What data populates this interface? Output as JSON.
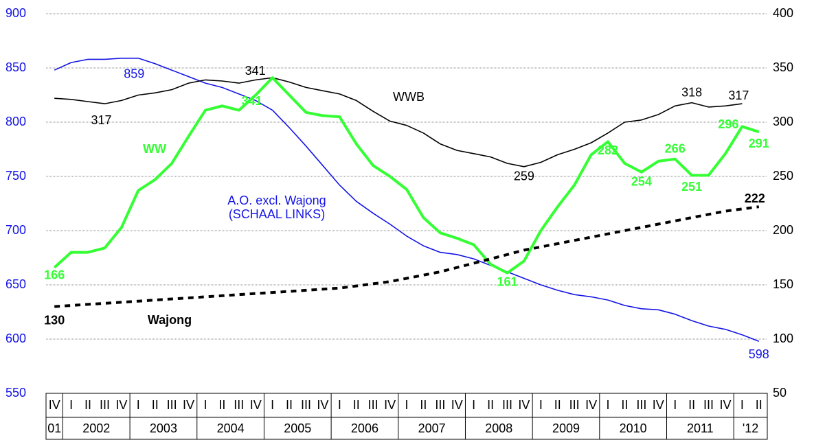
{
  "chart_data": {
    "type": "line",
    "category_groups": [
      {
        "label": "01",
        "categories": [
          "IV"
        ]
      },
      {
        "label": "2002",
        "categories": [
          "I",
          "II",
          "III",
          "IV"
        ]
      },
      {
        "label": "2003",
        "categories": [
          "I",
          "II",
          "III",
          "IV"
        ]
      },
      {
        "label": "2004",
        "categories": [
          "I",
          "II",
          "III",
          "IV"
        ]
      },
      {
        "label": "2005",
        "categories": [
          "I",
          "II",
          "III",
          "IV"
        ]
      },
      {
        "label": "2006",
        "categories": [
          "I",
          "II",
          "III",
          "IV"
        ]
      },
      {
        "label": "2007",
        "categories": [
          "I",
          "II",
          "III",
          "IV"
        ]
      },
      {
        "label": "2008",
        "categories": [
          "I",
          "II",
          "III",
          "IV"
        ]
      },
      {
        "label": "2009",
        "categories": [
          "I",
          "II",
          "III",
          "IV"
        ]
      },
      {
        "label": "2010",
        "categories": [
          "I",
          "II",
          "III",
          "IV"
        ]
      },
      {
        "label": "2011",
        "categories": [
          "I",
          "II",
          "III",
          "IV"
        ]
      },
      {
        "label": "'12",
        "categories": [
          "I",
          "II"
        ]
      }
    ],
    "ylim": [
      550,
      900
    ],
    "yticks": [
      550,
      600,
      650,
      700,
      750,
      800,
      850,
      900
    ],
    "y2lim": [
      50,
      400
    ],
    "y2ticks": [
      50,
      100,
      150,
      200,
      250,
      300,
      350,
      400
    ],
    "grid": true,
    "series": [
      {
        "name": "A.O. excl. Wajong",
        "scale_note": "(SCHAAL LINKS)",
        "color": "#1414e6",
        "axis": "y",
        "dashed": false,
        "width": 1.6,
        "values": [
          848,
          855,
          858,
          858,
          859,
          859,
          854,
          848,
          842,
          836,
          832,
          826,
          820,
          811,
          795,
          778,
          760,
          742,
          727,
          716,
          706,
          695,
          686,
          680,
          678,
          674,
          668,
          662,
          656,
          650,
          645,
          641,
          639,
          636,
          631,
          628,
          627,
          623,
          617,
          612,
          609,
          604,
          598
        ],
        "labeled": [
          5,
          42
        ]
      },
      {
        "name": "WWB",
        "color": "#000000",
        "axis": "y2",
        "dashed": false,
        "width": 1.6,
        "values": [
          322,
          321,
          319,
          317,
          320,
          325,
          327,
          330,
          336,
          339,
          338,
          336,
          339,
          341,
          337,
          332,
          329,
          326,
          320,
          310,
          301,
          297,
          290,
          280,
          274,
          271,
          268,
          262,
          259,
          263,
          270,
          275,
          281,
          290,
          300,
          302,
          307,
          315,
          318,
          314,
          315,
          317,
          null
        ],
        "labeled": [
          3,
          13,
          28,
          38,
          41
        ]
      },
      {
        "name": "WW",
        "color": "#33ff33",
        "axis": "y2",
        "dashed": false,
        "width": 4,
        "values": [
          166,
          180,
          180,
          184,
          203,
          237,
          247,
          262,
          287,
          311,
          315,
          311,
          325,
          341,
          325,
          309,
          306,
          305,
          280,
          260,
          250,
          238,
          212,
          198,
          193,
          187,
          169,
          161,
          172,
          200,
          222,
          242,
          270,
          282,
          262,
          254,
          264,
          266,
          251,
          251,
          271,
          296,
          291
        ],
        "labeled": [
          0,
          13,
          27,
          33,
          35,
          37,
          38,
          41,
          42
        ]
      },
      {
        "name": "Wajong",
        "color": "#000000",
        "axis": "y2",
        "dashed": true,
        "width": 4,
        "values": [
          130,
          131,
          132,
          133,
          134,
          135,
          136,
          137,
          138,
          139,
          140,
          141,
          142,
          143,
          144,
          145,
          146,
          147,
          149,
          151,
          153,
          156,
          159,
          162,
          166,
          170,
          174,
          178,
          182,
          185,
          188,
          191,
          194,
          197,
          200,
          203,
          206,
          209,
          212,
          215,
          218,
          220,
          222
        ],
        "labeled": [
          0,
          42
        ]
      }
    ]
  }
}
